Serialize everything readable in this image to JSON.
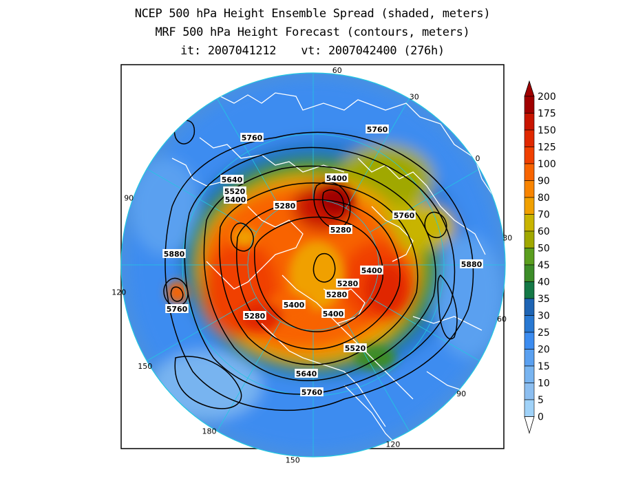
{
  "title": {
    "line1": "NCEP 500 hPa Height Ensemble Spread (shaded, meters)",
    "line2": "MRF 500 hPa Height Forecast (contours, meters)",
    "init_time": "it: 2007041212",
    "valid_time": "vt: 2007042400 (276h)"
  },
  "map": {
    "projection": "north polar stereographic",
    "longitude_labels": [
      "60",
      "30",
      "0",
      "30",
      "60",
      "90",
      "120",
      "150",
      "180",
      "150",
      "120",
      "90"
    ],
    "contour_labels": [
      "5760",
      "5760",
      "5640",
      "5520",
      "5400",
      "5400",
      "5280",
      "5280",
      "5760",
      "5880",
      "5880",
      "5760",
      "5400",
      "5280",
      "5280",
      "5400",
      "5400",
      "5280",
      "5520",
      "5640",
      "5760"
    ]
  },
  "colorbar": {
    "labels": [
      "200",
      "175",
      "150",
      "125",
      "100",
      "90",
      "80",
      "70",
      "60",
      "50",
      "45",
      "40",
      "35",
      "30",
      "25",
      "20",
      "15",
      "10",
      "5",
      "0"
    ],
    "colors": [
      "#a00000",
      "#c81400",
      "#e02800",
      "#f04000",
      "#f86400",
      "#f88400",
      "#f0a000",
      "#c8b400",
      "#a0a800",
      "#5a9e1e",
      "#3c8c28",
      "#147846",
      "#1e64b4",
      "#2878d2",
      "#3c8cf0",
      "#5aa0f0",
      "#78b4f0",
      "#8cbef0",
      "#a0d2f8",
      "#c8e8ff"
    ]
  },
  "colors": {
    "background": "#ffffff",
    "frame": "#000000",
    "coast": "#ffffff"
  }
}
